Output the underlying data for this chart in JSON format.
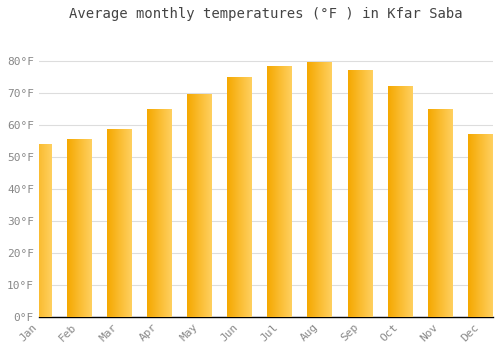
{
  "title": "Average monthly temperatures (°F ) in Kfar Saba",
  "months": [
    "Jan",
    "Feb",
    "Mar",
    "Apr",
    "May",
    "Jun",
    "Jul",
    "Aug",
    "Sep",
    "Oct",
    "Nov",
    "Dec"
  ],
  "values": [
    54,
    55.5,
    58.5,
    65,
    69.5,
    75,
    78.5,
    79.5,
    77,
    72,
    65,
    57
  ],
  "bar_color_left": "#F5A800",
  "bar_color_right": "#FFD060",
  "ylim": [
    0,
    90
  ],
  "yticks": [
    0,
    10,
    20,
    30,
    40,
    50,
    60,
    70,
    80
  ],
  "ytick_labels": [
    "0°F",
    "10°F",
    "20°F",
    "30°F",
    "40°F",
    "50°F",
    "60°F",
    "70°F",
    "80°F"
  ],
  "background_color": "#FFFFFF",
  "grid_color": "#DDDDDD",
  "title_fontsize": 10,
  "tick_fontsize": 8,
  "tick_color": "#888888"
}
